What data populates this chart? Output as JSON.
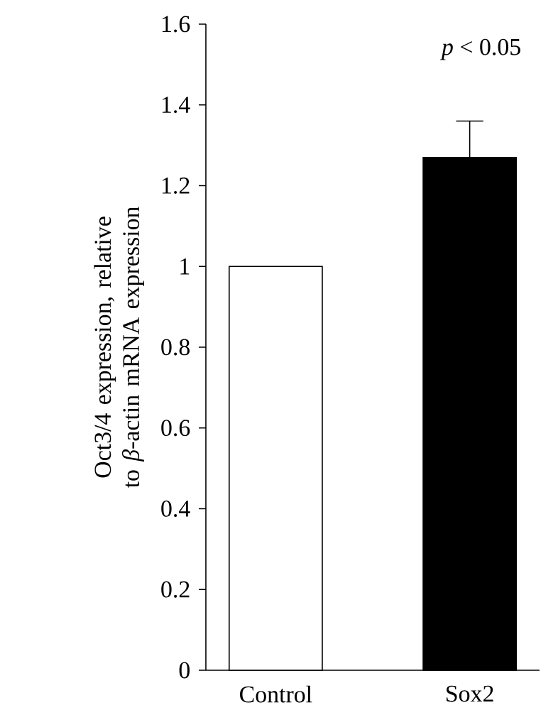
{
  "chart_data": {
    "type": "bar",
    "ylabel": "Oct3/4 expression, relative to *β*-actin mRNA expression",
    "categories": [
      "Control",
      "Sox2"
    ],
    "values": [
      1,
      1.27
    ],
    "colors": [
      "#ffffff",
      "#000000"
    ],
    "errors": [
      null,
      [
        1.27,
        1.36
      ]
    ],
    "ylim": [
      0,
      1.6
    ],
    "yticks": [
      0,
      0.2,
      0.4,
      0.6,
      0.8,
      1,
      1.2,
      1.4,
      1.6
    ],
    "annotations": [
      "*p* < 0.05"
    ],
    "grid": false
  }
}
